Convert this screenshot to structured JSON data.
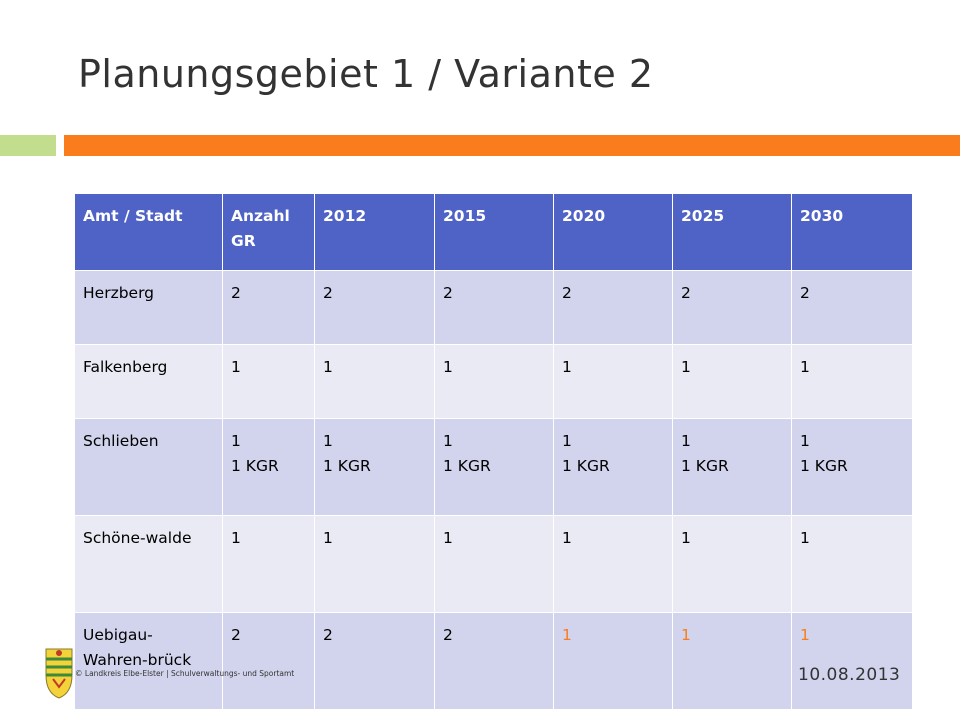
{
  "slide": {
    "title": "Planungsgebiet 1 / Variante 2",
    "footer": "© Landkreis Elbe-Elster | Schulverwaltungs- und Sportamt",
    "date": "10.08.2013",
    "accent_orange": "#fa7d1d",
    "accent_green": "#c3dd8f",
    "highlight_color": "#fa7d1d"
  },
  "table": {
    "headers": [
      "Amt / Stadt",
      "Anzahl GR",
      "2012",
      "2015",
      "2020",
      "2025",
      "2030"
    ],
    "rows": [
      [
        "Herzberg",
        "2",
        "2",
        "2",
        "2",
        "2",
        "2"
      ],
      [
        "Falkenberg",
        "1",
        "1",
        "1",
        "1",
        "1",
        "1"
      ],
      [
        "Schlieben",
        "1\n1 KGR",
        "1\n1 KGR",
        "1\n1 KGR",
        "1\n1 KGR",
        "1\n1 KGR",
        "1\n1 KGR"
      ],
      [
        "Schöne-walde",
        "1",
        "1",
        "1",
        "1",
        "1",
        "1"
      ],
      [
        "Uebigau-Wahren-brück",
        "2",
        "2",
        "2",
        "1",
        "1",
        "1"
      ]
    ]
  }
}
